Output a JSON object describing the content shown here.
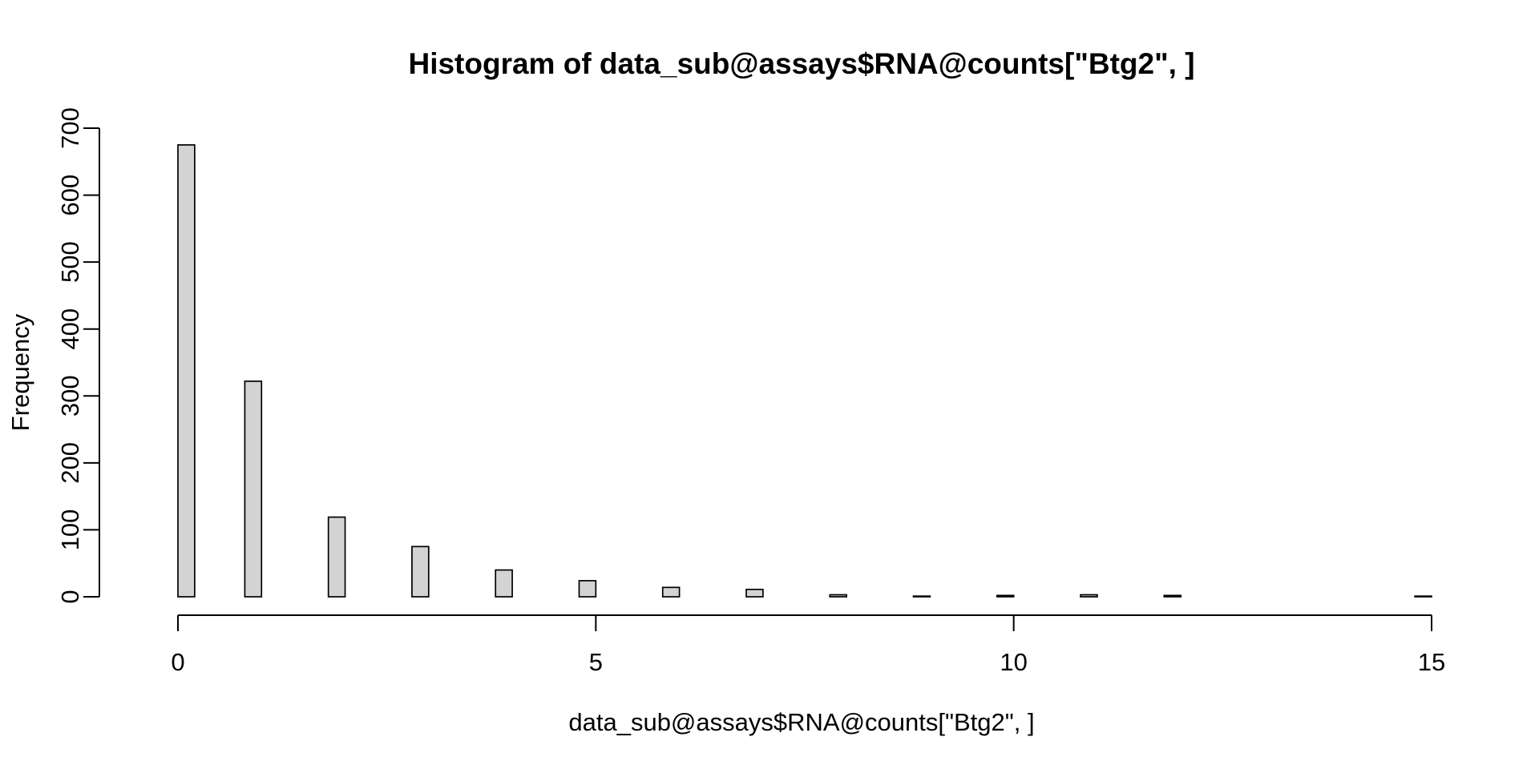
{
  "chart_data": {
    "type": "bar",
    "title": "Histogram of data_sub@assays$RNA@counts[\"Btg2\", ]",
    "xlabel": "data_sub@assays$RNA@counts[\"Btg2\", ]",
    "ylabel": "Frequency",
    "xlim": [
      0,
      15
    ],
    "ylim": [
      0,
      700
    ],
    "x_ticks": [
      "0",
      "5",
      "10",
      "15"
    ],
    "y_ticks": [
      "0",
      "100",
      "200",
      "300",
      "400",
      "500",
      "600",
      "700"
    ],
    "bin_width": 0.2,
    "bins": [
      {
        "start": 0.0,
        "end": 0.2,
        "count": 675
      },
      {
        "start": 0.8,
        "end": 1.0,
        "count": 322
      },
      {
        "start": 1.8,
        "end": 2.0,
        "count": 119
      },
      {
        "start": 2.8,
        "end": 3.0,
        "count": 75
      },
      {
        "start": 3.8,
        "end": 4.0,
        "count": 40
      },
      {
        "start": 4.8,
        "end": 5.0,
        "count": 24
      },
      {
        "start": 5.8,
        "end": 6.0,
        "count": 14
      },
      {
        "start": 6.8,
        "end": 7.0,
        "count": 11
      },
      {
        "start": 7.8,
        "end": 8.0,
        "count": 3
      },
      {
        "start": 8.8,
        "end": 9.0,
        "count": 1
      },
      {
        "start": 9.8,
        "end": 10.0,
        "count": 2
      },
      {
        "start": 10.8,
        "end": 11.0,
        "count": 3
      },
      {
        "start": 11.8,
        "end": 12.0,
        "count": 2
      },
      {
        "start": 14.8,
        "end": 15.0,
        "count": 1
      }
    ],
    "bar_fill": "#d3d3d3",
    "grid": false,
    "legend": "none"
  }
}
